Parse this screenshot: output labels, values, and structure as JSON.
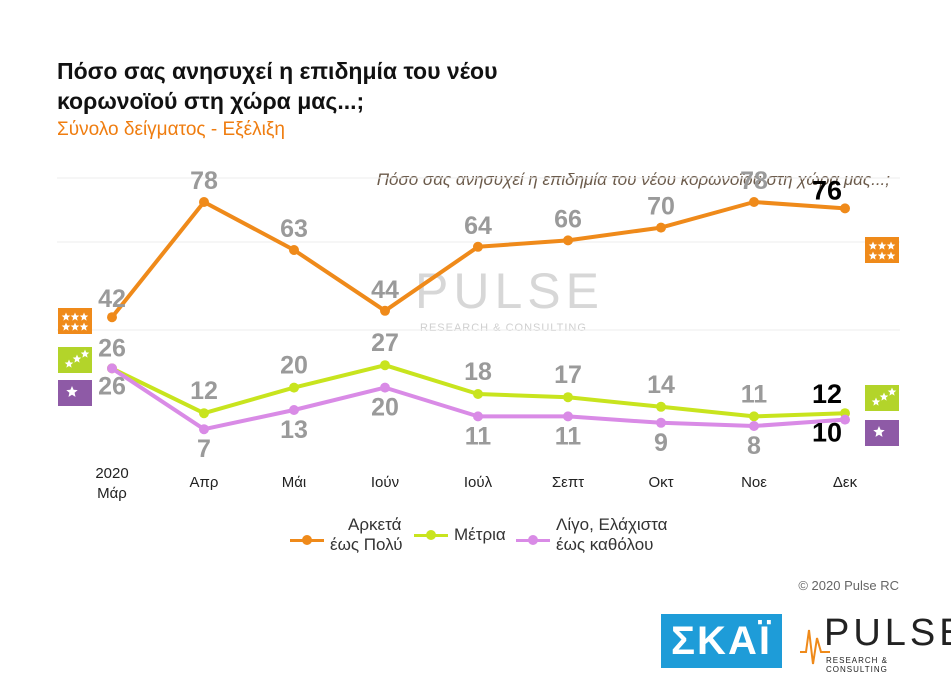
{
  "header": {
    "title": "Πόσο σας ανησυχεί η επιδημία του νέου κορωνοϊού στη χώρα μας...;",
    "subtitle": "Σύνολο δείγματος - Εξέλιξη",
    "question": "Πόσο σας ανησυχεί η επιδημία του νέου κορωνοϊού στη χώρα μας...;"
  },
  "watermark": {
    "word": "PULSE",
    "sub": "RESEARCH & CONSULTING"
  },
  "chart_data": {
    "type": "line",
    "categories": [
      "Μάρ",
      "Απρ",
      "Μάι",
      "Ιούν",
      "Ιούλ",
      "Σεπτ",
      "Οκτ",
      "Νοε",
      "Δεκ"
    ],
    "first_category_year": "2020",
    "ylim": [
      0,
      100
    ],
    "series": [
      {
        "name": "Αρκετά έως Πολύ",
        "legend_lines": [
          "Αρκετά",
          "έως Πολύ"
        ],
        "color": "#ef8a1a",
        "values": [
          42,
          78,
          63,
          44,
          64,
          66,
          70,
          78,
          76
        ]
      },
      {
        "name": "Μέτρια",
        "legend_lines": [
          "Μέτρια"
        ],
        "color": "#c8e41e",
        "values": [
          26,
          12,
          20,
          27,
          18,
          17,
          14,
          11,
          12
        ]
      },
      {
        "name": "Λίγο, Ελάχιστα έως καθόλου",
        "legend_lines": [
          "Λίγο, Ελάχιστα",
          "έως καθόλου"
        ],
        "color": "#d98be6",
        "values": [
          26,
          7,
          13,
          20,
          11,
          11,
          9,
          8,
          10
        ]
      }
    ]
  },
  "footer": {
    "copyright": "© 2020 Pulse RC",
    "skai": "ΣΚΑΪ",
    "pulse_word": "PULSE",
    "pulse_sub": "RESEARCH & CONSULTING"
  }
}
